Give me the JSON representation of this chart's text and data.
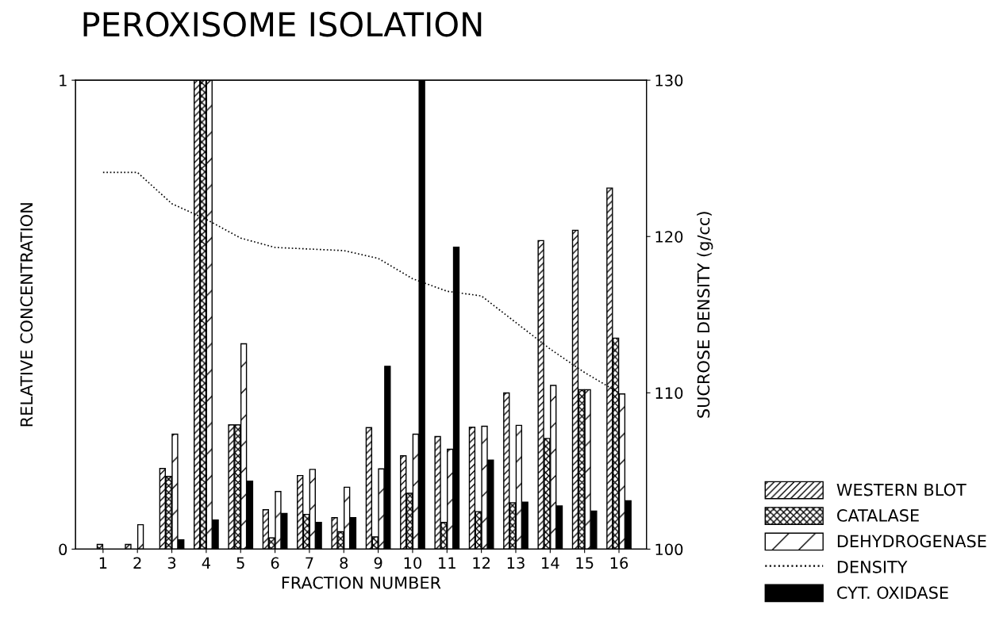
{
  "chart_data": {
    "type": "bar",
    "title": "PEROXISOME ISOLATION",
    "xlabel": "FRACTION NUMBER",
    "ylabel": "RELATIVE CONCENTRATION",
    "y2label": "SUCROSE DENSITY (g/cc)",
    "categories": [
      "1",
      "2",
      "3",
      "4",
      "5",
      "6",
      "7",
      "8",
      "9",
      "10",
      "11",
      "12",
      "13",
      "14",
      "15",
      "16"
    ],
    "series": [
      {
        "name": "WESTERN BLOT",
        "color": "#000000",
        "values": [
          null,
          0.01,
          0.172,
          1.0,
          0.265,
          0.084,
          0.157,
          0.067,
          0.259,
          0.199,
          0.24,
          0.26,
          0.333,
          0.658,
          0.68,
          0.77
        ]
      },
      {
        "name": "CATALASE",
        "color": "#000000",
        "values": [
          0.01,
          null,
          0.155,
          1.0,
          0.265,
          0.024,
          0.074,
          0.037,
          0.026,
          0.119,
          0.057,
          0.08,
          0.099,
          0.236,
          0.34,
          0.45
        ]
      },
      {
        "name": "DEHYDROGENASE",
        "color": "#000000",
        "values": [
          null,
          0.052,
          0.245,
          1.0,
          0.438,
          0.123,
          0.17,
          0.132,
          0.171,
          0.245,
          0.213,
          0.262,
          0.264,
          0.349,
          0.34,
          0.331
        ]
      },
      {
        "name": "DENSITY",
        "type": "line",
        "axis": "y2",
        "color": "#000000",
        "line_style": "dotted",
        "values": [
          124.1,
          124.1,
          122.1,
          121.1,
          119.9,
          119.3,
          119.2,
          119.1,
          118.6,
          117.3,
          116.5,
          116.2,
          114.5,
          112.8,
          111.3,
          110.0
        ]
      },
      {
        "name": "CYT. OXIDASE",
        "color": "#000000",
        "values": [
          null,
          null,
          0.02,
          0.062,
          0.145,
          0.076,
          0.057,
          0.067,
          0.39,
          1.0,
          0.644,
          0.19,
          0.1,
          0.092,
          0.081,
          0.103
        ]
      }
    ],
    "ylim": [
      0,
      1
    ],
    "yticks": [
      0,
      1
    ],
    "y2lim": [
      100,
      130
    ],
    "y2ticks": [
      100,
      110,
      120,
      130
    ],
    "grid": false,
    "legend": "bottom right"
  }
}
